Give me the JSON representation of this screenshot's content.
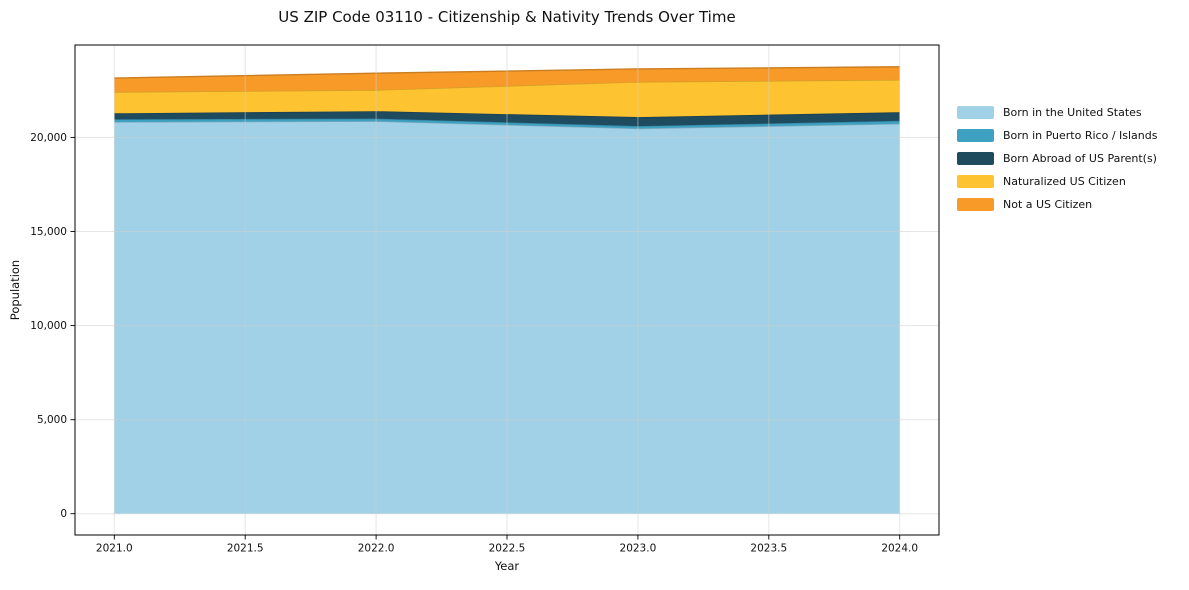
{
  "chart_data": {
    "type": "area",
    "stacked": true,
    "title": "US ZIP Code 03110 - Citizenship & Nativity Trends Over Time",
    "xlabel": "Year",
    "ylabel": "Population",
    "x": [
      2021,
      2022,
      2023,
      2024
    ],
    "series": [
      {
        "name": "Born in the United States",
        "color": "#a1d1e6",
        "values": [
          20820,
          20860,
          20470,
          20720
        ]
      },
      {
        "name": "Born in Puerto Rico / Islands",
        "color": "#3ea1c2",
        "values": [
          140,
          140,
          130,
          160
        ]
      },
      {
        "name": "Born Abroad of US Parent(s)",
        "color": "#1f4b5f",
        "values": [
          320,
          390,
          480,
          460
        ]
      },
      {
        "name": "Naturalized US Citizen",
        "color": "#fdc330",
        "values": [
          1130,
          1130,
          1870,
          1720
        ]
      },
      {
        "name": "Not a US Citizen",
        "color": "#f79a28",
        "values": [
          740,
          890,
          690,
          690
        ]
      }
    ],
    "xlim": [
      2020.85,
      2024.15
    ],
    "ylim": [
      -1130,
      24910
    ],
    "xticks": [
      {
        "v": 2021.0,
        "label": "2021.0"
      },
      {
        "v": 2021.5,
        "label": "2021.5"
      },
      {
        "v": 2022.0,
        "label": "2022.0"
      },
      {
        "v": 2022.5,
        "label": "2022.5"
      },
      {
        "v": 2023.0,
        "label": "2023.0"
      },
      {
        "v": 2023.5,
        "label": "2023.5"
      },
      {
        "v": 2024.0,
        "label": "2024.0"
      }
    ],
    "yticks": [
      {
        "v": 0,
        "label": "0"
      },
      {
        "v": 5000,
        "label": "5,000"
      },
      {
        "v": 10000,
        "label": "10,000"
      },
      {
        "v": 15000,
        "label": "15,000"
      },
      {
        "v": 20000,
        "label": "20,000"
      }
    ],
    "grid": true,
    "legend_position": "right-outside"
  }
}
